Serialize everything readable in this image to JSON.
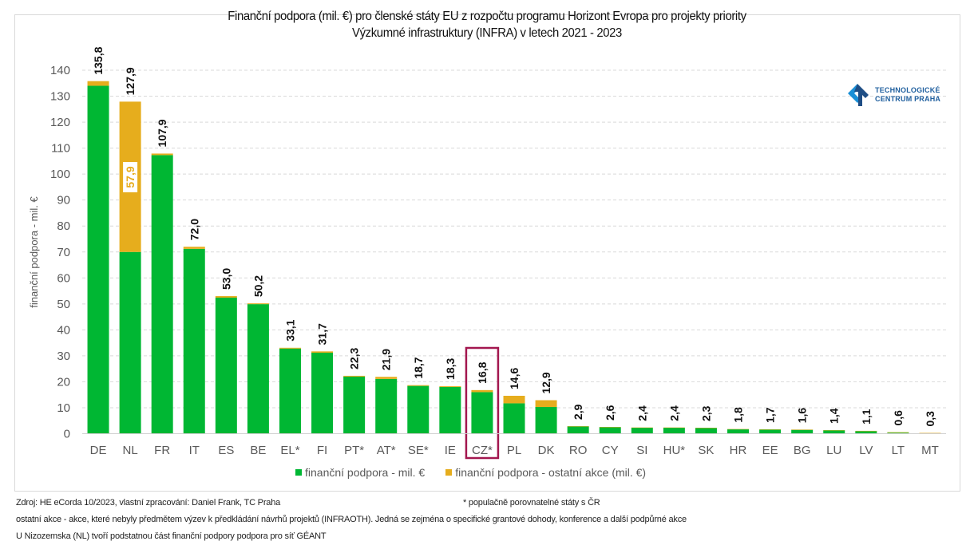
{
  "chart_data": {
    "type": "bar",
    "stacked": true,
    "title": "Finanční podpora (mil. €) pro členské státy EU z rozpočtu programu Horizont Evropa pro projekty priority Výzkumné infrastruktury (INFRA) v letech 2021 - 2023",
    "title_lines": [
      "Finanční podpora (mil. €) pro členské státy EU z rozpočtu programu Horizont Evropa pro projekty priority",
      "Výzkumné infrastruktury (INFRA) v letech 2021 - 2023"
    ],
    "xlabel": "",
    "ylabel": "finanční podpora - mil. €",
    "ylim": [
      0,
      140
    ],
    "yticks": [
      0,
      10,
      20,
      30,
      40,
      50,
      60,
      70,
      80,
      90,
      100,
      110,
      120,
      130,
      140
    ],
    "grid": true,
    "legend_position": "bottom",
    "categories": [
      "DE",
      "NL",
      "FR",
      "IT",
      "ES",
      "BE",
      "EL*",
      "FI",
      "PT*",
      "AT*",
      "SE*",
      "IE",
      "CZ*",
      "PL",
      "DK",
      "RO",
      "CY",
      "SI",
      "HU*",
      "SK",
      "HR",
      "EE",
      "BG",
      "LU",
      "LV",
      "LT",
      "MT"
    ],
    "series": [
      {
        "name": "finanční podpora - mil. €",
        "color": "#00b733",
        "values": [
          134.0,
          70.0,
          107.3,
          71.2,
          52.4,
          49.9,
          32.8,
          31.2,
          22.0,
          21.1,
          18.4,
          18.0,
          16.0,
          11.7,
          10.3,
          2.8,
          2.5,
          2.3,
          2.3,
          2.2,
          1.7,
          1.6,
          1.5,
          1.3,
          1.0,
          0.4,
          0.1
        ]
      },
      {
        "name": "finanční podpora - ostatní akce (mil. €)",
        "color": "#e6ad1d",
        "values": [
          1.8,
          57.9,
          0.6,
          0.8,
          0.6,
          0.3,
          0.3,
          0.5,
          0.3,
          0.8,
          0.3,
          0.3,
          0.8,
          2.9,
          2.6,
          0.1,
          0.1,
          0.1,
          0.1,
          0.1,
          0.1,
          0.1,
          0.1,
          0.1,
          0.1,
          0.2,
          0.2
        ]
      }
    ],
    "totals": [
      135.8,
      127.9,
      107.9,
      72.0,
      53.0,
      50.2,
      33.1,
      31.7,
      22.3,
      21.9,
      18.7,
      18.3,
      16.8,
      14.6,
      12.9,
      2.9,
      2.6,
      2.4,
      2.4,
      2.3,
      1.8,
      1.7,
      1.6,
      1.4,
      1.1,
      0.6,
      0.3
    ],
    "total_labels": [
      "135,8",
      "127,9",
      "107,9",
      "72,0",
      "53,0",
      "50,2",
      "33,1",
      "31,7",
      "22,3",
      "21,9",
      "18,7",
      "18,3",
      "16,8",
      "14,6",
      "12,9",
      "2,9",
      "2,6",
      "2,4",
      "2,4",
      "2,3",
      "1,8",
      "1,7",
      "1,6",
      "1,4",
      "1,1",
      "0,6",
      "0,3"
    ],
    "annotations": [
      {
        "category": "NL",
        "series": "finanční podpora - ostatní akce (mil. €)",
        "label": "57,9"
      },
      {
        "category": "CZ*",
        "type": "highlight-box",
        "color": "#a3174f"
      }
    ]
  },
  "logo": {
    "line1": "TECHNOLOGICKÉ",
    "line2": "CENTRUM PRAHA"
  },
  "footer": {
    "source": "Zdroj: HE eCorda 10/2023, vlastní zpracování: Daniel Frank, TC Praha",
    "asterisk_note": "* populačně porovnatelné státy s ČR",
    "note1": "ostatní akce - akce, které nebyly předmětem výzev k předkládání návrhů projektů (INFRAOTH). Jedná se zejména o specifické grantové dohody, konference a další podpůrné akce",
    "note2": "U Nizozemska (NL) tvoří podstatnou část finanční podpory podpora pro síť GÉANT"
  }
}
